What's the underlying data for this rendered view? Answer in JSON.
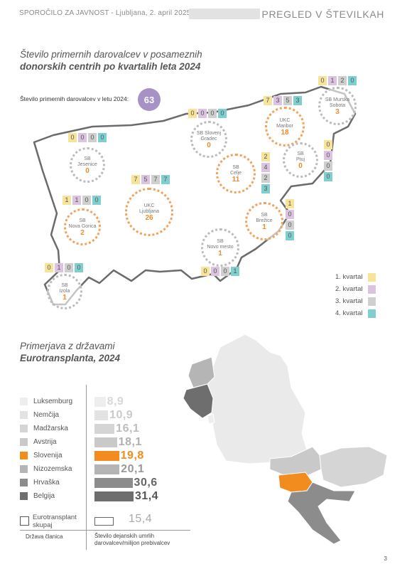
{
  "header": {
    "left": "SPOROČILO ZA JAVNOST - Ljubljana, 2. april 2025",
    "right": "PREGLED V ŠTEVILKAH"
  },
  "section1": {
    "title_line1": "Število primernih darovalcev v posameznih",
    "title_line2": "donorskih centrih po kvartalih leta 2024",
    "total_label": "Število primernih darovalcev v letu 2024:",
    "total_value": "63"
  },
  "centers": [
    {
      "name1": "SB",
      "name2": "Jesenice",
      "value": "0",
      "quarters": [
        "0",
        "0",
        "0",
        "0"
      ]
    },
    {
      "name1": "SB",
      "name2": "Nova Gorica",
      "value": "2",
      "quarters": [
        "1",
        "1",
        "0",
        "0"
      ]
    },
    {
      "name1": "SB",
      "name2": "Izola",
      "value": "1",
      "quarters": [
        "0",
        "1",
        "0",
        "0"
      ]
    },
    {
      "name1": "UKC",
      "name2": "Ljubljana",
      "value": "26",
      "quarters": [
        "7",
        "5",
        "7",
        "7"
      ]
    },
    {
      "name1": "SB Slovenj",
      "name2": "Gradec",
      "value": "0",
      "quarters": [
        "0",
        "0",
        "0",
        "0"
      ]
    },
    {
      "name1": "SB",
      "name2": "Celje",
      "value": "11",
      "quarters": [
        "2",
        "4",
        "2",
        "3"
      ]
    },
    {
      "name1": "UKC",
      "name2": "Maribor",
      "value": "18",
      "quarters": [
        "7",
        "3",
        "5",
        "3"
      ]
    },
    {
      "name1": "SB Murska",
      "name2": "Sobota",
      "value": "3",
      "quarters": [
        "0",
        "1",
        "2",
        "0"
      ]
    },
    {
      "name1": "SB",
      "name2": "Ptuj",
      "value": "0",
      "quarters": [
        "0",
        "0",
        "0",
        "0"
      ]
    },
    {
      "name1": "SB",
      "name2": "Brežice",
      "value": "1",
      "quarters": [
        "1",
        "0",
        "0",
        "0"
      ]
    },
    {
      "name1": "SB",
      "name2": "Novo mesto",
      "value": "1",
      "quarters": [
        "0",
        "0",
        "0",
        "1"
      ]
    }
  ],
  "legend": [
    "1. kvartal",
    "2. kvartal",
    "3. kvartal",
    "4. kvartal"
  ],
  "colors": {
    "q1": "#f7e39a",
    "q2": "#dcc3e0",
    "q3": "#cfcfcf",
    "q4": "#7fcfcf",
    "slovenia": "#f28c1e",
    "total": "#a692c6"
  },
  "section2": {
    "title_line1": "Primerjava z državami",
    "title_line2": "Eurotransplanta, 2024"
  },
  "chart_data": {
    "type": "bar",
    "categories": [
      "Luksemburg",
      "Nemčija",
      "Madžarska",
      "Avstrija",
      "Slovenija",
      "Nizozemska",
      "Hrvaška",
      "Belgija"
    ],
    "values": [
      8.9,
      10.9,
      16.1,
      18.1,
      19.8,
      20.1,
      30.6,
      31.4
    ],
    "labels": [
      "8,9",
      "10,9",
      "16,1",
      "18,1",
      "19,8",
      "20,1",
      "30,6",
      "31,4"
    ],
    "colors": [
      "#eeeeee",
      "#e3e3e3",
      "#d5d5d5",
      "#c9c9c9",
      "#f28c1e",
      "#b5b5b5",
      "#8c8c8c",
      "#6e6e6e"
    ],
    "value_colors": [
      "#d8d8d8",
      "#cacaca",
      "#bdbdbd",
      "#b0b0b0",
      "#f28c1e",
      "#999999",
      "#666666",
      "#555555"
    ],
    "total_label_line1": "Eurotransplant",
    "total_label_line2": "skupaj",
    "total_value": 15.4,
    "total_value_label": "15,4",
    "xlabel_left": "Država članica",
    "xlabel_right_line1": "Število dejanskih umrlih",
    "xlabel_right_line2": "darovalcev/milijon prebivalcev"
  },
  "page_number": "3"
}
